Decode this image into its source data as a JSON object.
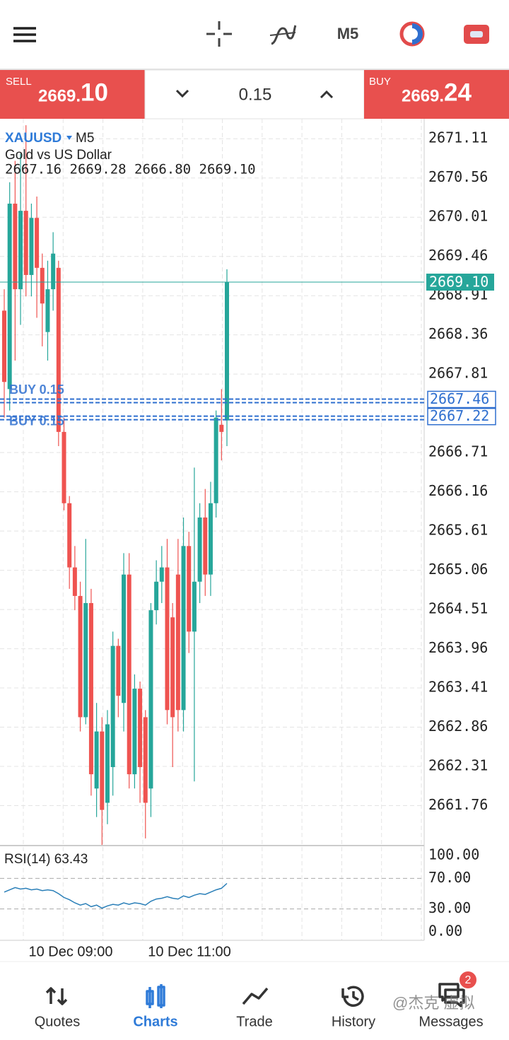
{
  "toolbar": {
    "timeframe": "M5"
  },
  "trade_bar": {
    "sell": {
      "label": "SELL",
      "price_small": "2669.",
      "price_big": "10"
    },
    "volume": "0.15",
    "buy": {
      "label": "BUY",
      "price_small": "2669.",
      "price_big": "24"
    }
  },
  "chart": {
    "type": "candlestick",
    "symbol": "XAUUSD",
    "timeframe": "M5",
    "description": "Gold vs US Dollar",
    "ohlc_text": "2667.16 2669.28 2666.80 2669.10",
    "up_color": "#26a69a",
    "down_color": "#ef5350",
    "ylim": [
      2661.21,
      2671.39
    ],
    "yticks": [
      2671.11,
      2670.56,
      2670.01,
      2669.46,
      2668.91,
      2668.36,
      2667.81,
      2666.71,
      2666.16,
      2665.61,
      2665.06,
      2664.51,
      2663.96,
      2663.41,
      2662.86,
      2662.31,
      2661.76
    ],
    "current_price": {
      "value": 2669.1,
      "label": "2669.10"
    },
    "orders": [
      {
        "text": "BUY 0.15",
        "price": {
          "value": 2667.46,
          "label": "2667.46"
        }
      },
      {
        "text": "BUY 0.15",
        "price": {
          "value": 2667.22,
          "label": "2667.22"
        }
      }
    ],
    "open": [
      2668.7,
      2667.6,
      2670.2,
      2669.0,
      2670.1,
      2669.2,
      2670.0,
      2669.3,
      2668.4,
      2669.0,
      2669.3,
      2667.0,
      2666.0,
      2665.1,
      2664.7,
      2663.0,
      2664.6,
      2662.0,
      2662.8,
      2661.8,
      2662.3,
      2664.0,
      2663.2,
      2665.0,
      2662.2,
      2663.4,
      2663.0,
      2662.0,
      2664.5,
      2664.9,
      2665.1,
      2664.4,
      2665.0,
      2663.1,
      2665.4,
      2664.2,
      2664.9,
      2665.8,
      2665.0,
      2666.0,
      2667.1,
      2667.16
    ],
    "high": [
      2669.0,
      2670.5,
      2670.8,
      2670.9,
      2671.3,
      2670.2,
      2670.3,
      2669.5,
      2669.4,
      2669.8,
      2669.4,
      2667.2,
      2666.1,
      2665.4,
      2664.9,
      2665.5,
      2664.8,
      2663.2,
      2663.0,
      2663.1,
      2664.2,
      2664.1,
      2665.3,
      2665.3,
      2663.6,
      2663.5,
      2663.1,
      2664.6,
      2665.2,
      2665.4,
      2665.5,
      2664.6,
      2665.5,
      2665.8,
      2665.6,
      2666.5,
      2666.0,
      2666.2,
      2666.3,
      2667.3,
      2667.6,
      2669.28
    ],
    "low": [
      2667.2,
      2667.3,
      2668.0,
      2668.5,
      2668.9,
      2668.9,
      2668.6,
      2668.2,
      2668.0,
      2668.7,
      2666.8,
      2665.9,
      2664.8,
      2664.5,
      2662.8,
      2662.9,
      2661.9,
      2661.6,
      2661.2,
      2661.5,
      2661.9,
      2663.0,
      2662.8,
      2662.0,
      2662.0,
      2661.8,
      2661.3,
      2661.6,
      2664.3,
      2664.6,
      2662.9,
      2662.3,
      2662.8,
      2662.8,
      2663.9,
      2662.1,
      2664.6,
      2664.7,
      2664.7,
      2665.8,
      2666.6,
      2666.8
    ],
    "close": [
      2667.7,
      2670.2,
      2669.0,
      2670.1,
      2669.2,
      2670.0,
      2669.3,
      2668.8,
      2669.0,
      2669.5,
      2667.0,
      2666.0,
      2665.1,
      2664.7,
      2663.0,
      2664.6,
      2662.2,
      2662.8,
      2661.7,
      2662.9,
      2664.0,
      2663.3,
      2665.0,
      2662.2,
      2663.4,
      2662.3,
      2661.8,
      2664.5,
      2664.9,
      2665.1,
      2663.1,
      2663.0,
      2663.1,
      2665.4,
      2664.2,
      2664.9,
      2665.8,
      2665.0,
      2666.0,
      2667.2,
      2667.0,
      2669.1
    ],
    "time_labels": [
      "10 Dec 09:00",
      "10 Dec 11:00"
    ]
  },
  "rsi": {
    "label": "RSI(14) 63.43",
    "color": "#2a7fb8",
    "ylim": [
      0,
      100
    ],
    "yticks": [
      {
        "value": 100,
        "label": "100.00"
      },
      {
        "value": 70,
        "label": "70.00"
      },
      {
        "value": 30,
        "label": "30.00"
      },
      {
        "value": 0,
        "label": "0.00"
      }
    ],
    "levels": [
      70,
      30
    ],
    "values": [
      52,
      55,
      58,
      56,
      57,
      55,
      56,
      54,
      55,
      54,
      50,
      45,
      42,
      38,
      35,
      37,
      33,
      35,
      31,
      34,
      36,
      35,
      38,
      36,
      38,
      37,
      35,
      40,
      43,
      44,
      46,
      44,
      43,
      47,
      45,
      48,
      50,
      49,
      52,
      55,
      57,
      63.43
    ]
  },
  "nav": {
    "items": [
      "Quotes",
      "Charts",
      "Trade",
      "History",
      "Messages"
    ],
    "active": 1,
    "badge": "2"
  },
  "watermark": "@杰克 虚拟"
}
